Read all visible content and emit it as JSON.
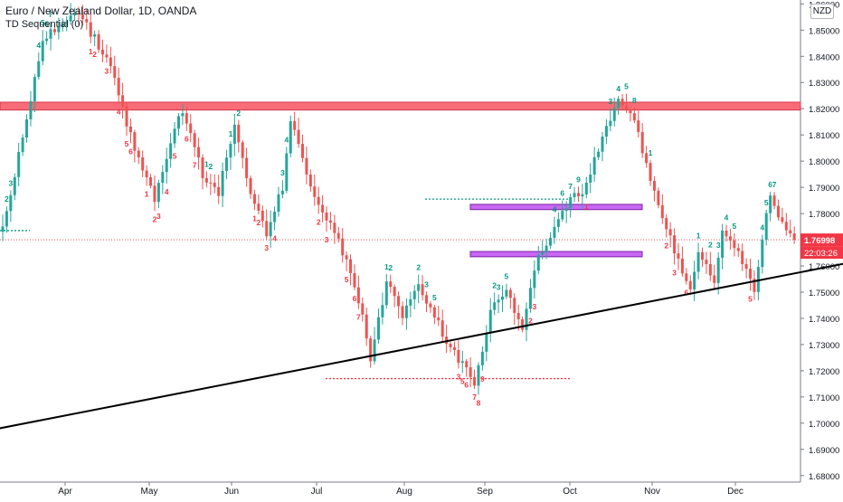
{
  "header": {
    "title": "Euro / New Zealand Dollar, 1D, OANDA",
    "indicator": "TD Sequential (0)"
  },
  "currency_badge": "NZD",
  "colors": {
    "bull": "#26a69a",
    "bear": "#ef5350",
    "count_up": "#089981",
    "count_down": "#f23645",
    "resistance_band": "#f7525f",
    "box_purple": "#c04ef2",
    "trendline": "#000000",
    "price_label": "#f23645"
  },
  "price_label": {
    "value": "1.76998",
    "countdown": "22:03:26"
  },
  "chart_data": {
    "type": "candlestick",
    "x_axis": {
      "ticks": [
        "Apr",
        "May",
        "Jun",
        "Jul",
        "Aug",
        "Sep",
        "Oct",
        "Nov",
        "Dec"
      ]
    },
    "y_axis": {
      "range": [
        1.6775,
        1.8615
      ],
      "ticks": [
        "1.68000",
        "1.69000",
        "1.70000",
        "1.71000",
        "1.72000",
        "1.73000",
        "1.74000",
        "1.75000",
        "1.76000",
        "1.77000",
        "1.78000",
        "1.79000",
        "1.80000",
        "1.81000",
        "1.82000",
        "1.83000",
        "1.84000",
        "1.85000",
        "1.86000"
      ]
    },
    "grid": false,
    "approx_close_path": [
      [
        0,
        1.775
      ],
      [
        6,
        1.815
      ],
      [
        10,
        1.846
      ],
      [
        18,
        1.858
      ],
      [
        26,
        1.84
      ],
      [
        30,
        1.82
      ],
      [
        34,
        1.8
      ],
      [
        38,
        1.786
      ],
      [
        42,
        1.808
      ],
      [
        45,
        1.82
      ],
      [
        50,
        1.795
      ],
      [
        54,
        1.788
      ],
      [
        58,
        1.815
      ],
      [
        62,
        1.789
      ],
      [
        66,
        1.772
      ],
      [
        70,
        1.79
      ],
      [
        72,
        1.815
      ],
      [
        78,
        1.787
      ],
      [
        82,
        1.775
      ],
      [
        86,
        1.762
      ],
      [
        90,
        1.74
      ],
      [
        92,
        1.722
      ],
      [
        96,
        1.755
      ],
      [
        100,
        1.742
      ],
      [
        104,
        1.752
      ],
      [
        108,
        1.742
      ],
      [
        112,
        1.728
      ],
      [
        116,
        1.721
      ],
      [
        118,
        1.716
      ],
      [
        122,
        1.742
      ],
      [
        126,
        1.752
      ],
      [
        130,
        1.736
      ],
      [
        134,
        1.764
      ],
      [
        138,
        1.775
      ],
      [
        142,
        1.785
      ],
      [
        146,
        1.79
      ],
      [
        150,
        1.809
      ],
      [
        154,
        1.822
      ],
      [
        158,
        1.815
      ],
      [
        160,
        1.805
      ],
      [
        164,
        1.782
      ],
      [
        168,
        1.766
      ],
      [
        172,
        1.75
      ],
      [
        174,
        1.767
      ],
      [
        178,
        1.755
      ],
      [
        180,
        1.775
      ],
      [
        184,
        1.764
      ],
      [
        188,
        1.752
      ],
      [
        190,
        1.77
      ],
      [
        192,
        1.788
      ],
      [
        194,
        1.78
      ],
      [
        196,
        1.775
      ],
      [
        198,
        1.77
      ]
    ],
    "current_price": 1.76998,
    "resistance_band": [
      1.8195,
      1.8225
    ],
    "boxes": [
      [
        1.7815,
        1.7835
      ],
      [
        1.7635,
        1.7655
      ]
    ],
    "dotted_levels": [
      {
        "value": 1.7735,
        "color": "green"
      },
      {
        "value": 1.7855,
        "color": "green"
      },
      {
        "value": 1.717,
        "color": "red"
      },
      {
        "value": 1.77,
        "color": "red"
      }
    ],
    "trendline": [
      [
        -16,
        1.6935
      ],
      [
        216,
        1.7625
      ]
    ],
    "td_counts": [
      {
        "bar": 1,
        "text": "2",
        "dir": "up",
        "side": "above"
      },
      {
        "bar": 2,
        "text": "3",
        "dir": "up",
        "side": "above"
      },
      {
        "bar": 9,
        "text": "4",
        "dir": "up",
        "side": "above"
      },
      {
        "bar": 10,
        "text": "5",
        "dir": "up",
        "side": "above"
      },
      {
        "bar": 11,
        "text": "6",
        "dir": "up",
        "side": "above"
      },
      {
        "bar": 12,
        "text": "7",
        "dir": "up",
        "side": "above"
      },
      {
        "bar": 22,
        "text": "1",
        "dir": "down",
        "side": "below"
      },
      {
        "bar": 23,
        "text": "2",
        "dir": "down",
        "side": "below"
      },
      {
        "bar": 26,
        "text": "3",
        "dir": "down",
        "side": "below"
      },
      {
        "bar": 29,
        "text": "4",
        "dir": "down",
        "side": "below"
      },
      {
        "bar": 31,
        "text": "5",
        "dir": "down",
        "side": "below"
      },
      {
        "bar": 32,
        "text": "6",
        "dir": "down",
        "side": "below"
      },
      {
        "bar": 36,
        "text": "1",
        "dir": "down",
        "side": "below"
      },
      {
        "bar": 38,
        "text": "2",
        "dir": "down",
        "side": "below"
      },
      {
        "bar": 39,
        "text": "3",
        "dir": "down",
        "side": "below"
      },
      {
        "bar": 41,
        "text": "4",
        "dir": "down",
        "side": "below"
      },
      {
        "bar": 43,
        "text": "5",
        "dir": "down",
        "side": "below"
      },
      {
        "bar": 46,
        "text": "6",
        "dir": "down",
        "side": "below"
      },
      {
        "bar": 48,
        "text": "7",
        "dir": "down",
        "side": "below"
      },
      {
        "bar": 51,
        "text": "1",
        "dir": "up",
        "side": "above"
      },
      {
        "bar": 52,
        "text": "2",
        "dir": "up",
        "side": "above"
      },
      {
        "bar": 57,
        "text": "1",
        "dir": "up",
        "side": "above"
      },
      {
        "bar": 59,
        "text": "2",
        "dir": "up",
        "side": "above"
      },
      {
        "bar": 63,
        "text": "1",
        "dir": "down",
        "side": "below"
      },
      {
        "bar": 64,
        "text": "2",
        "dir": "down",
        "side": "below"
      },
      {
        "bar": 66,
        "text": "3",
        "dir": "down",
        "side": "below"
      },
      {
        "bar": 68,
        "text": "4",
        "dir": "down",
        "side": "below"
      },
      {
        "bar": 70,
        "text": "3",
        "dir": "up",
        "side": "above"
      },
      {
        "bar": 71,
        "text": "4",
        "dir": "up",
        "side": "above"
      },
      {
        "bar": 79,
        "text": "2",
        "dir": "down",
        "side": "below"
      },
      {
        "bar": 81,
        "text": "3",
        "dir": "down",
        "side": "below"
      },
      {
        "bar": 86,
        "text": "5",
        "dir": "down",
        "side": "below"
      },
      {
        "bar": 88,
        "text": "6",
        "dir": "down",
        "side": "below"
      },
      {
        "bar": 89,
        "text": "7",
        "dir": "down",
        "side": "below"
      },
      {
        "bar": 96,
        "text": "1",
        "dir": "up",
        "side": "above"
      },
      {
        "bar": 97,
        "text": "2",
        "dir": "up",
        "side": "above"
      },
      {
        "bar": 104,
        "text": "2",
        "dir": "up",
        "side": "above"
      },
      {
        "bar": 106,
        "text": "3",
        "dir": "up",
        "side": "above"
      },
      {
        "bar": 108,
        "text": "5",
        "dir": "up",
        "side": "above"
      },
      {
        "bar": 114,
        "text": "3",
        "dir": "down",
        "side": "below"
      },
      {
        "bar": 115,
        "text": "5",
        "dir": "down",
        "side": "below"
      },
      {
        "bar": 116,
        "text": "6",
        "dir": "down",
        "side": "below"
      },
      {
        "bar": 118,
        "text": "7",
        "dir": "down",
        "side": "below"
      },
      {
        "bar": 119,
        "text": "8",
        "dir": "down",
        "side": "below"
      },
      {
        "bar": 120,
        "text": "9",
        "dir": "down",
        "side": "below"
      },
      {
        "bar": 123,
        "text": "2",
        "dir": "up",
        "side": "above"
      },
      {
        "bar": 124,
        "text": "3",
        "dir": "up",
        "side": "above"
      },
      {
        "bar": 126,
        "text": "5",
        "dir": "up",
        "side": "above"
      },
      {
        "bar": 132,
        "text": "2",
        "dir": "down",
        "side": "below"
      },
      {
        "bar": 133,
        "text": "3",
        "dir": "down",
        "side": "below"
      },
      {
        "bar": 138,
        "text": "4",
        "dir": "up",
        "side": "above"
      },
      {
        "bar": 140,
        "text": "6",
        "dir": "up",
        "side": "above"
      },
      {
        "bar": 142,
        "text": "7",
        "dir": "up",
        "side": "above"
      },
      {
        "bar": 144,
        "text": "9",
        "dir": "up",
        "side": "above"
      },
      {
        "bar": 146,
        "text": "1",
        "dir": "down",
        "side": "below"
      },
      {
        "bar": 152,
        "text": "3",
        "dir": "up",
        "side": "above"
      },
      {
        "bar": 154,
        "text": "4",
        "dir": "up",
        "side": "above"
      },
      {
        "bar": 156,
        "text": "5",
        "dir": "up",
        "side": "above"
      },
      {
        "bar": 158,
        "text": "8",
        "dir": "up",
        "side": "above"
      },
      {
        "bar": 162,
        "text": "1",
        "dir": "up",
        "side": "above"
      },
      {
        "bar": 166,
        "text": "2",
        "dir": "down",
        "side": "below"
      },
      {
        "bar": 168,
        "text": "3",
        "dir": "down",
        "side": "below"
      },
      {
        "bar": 171,
        "text": "6",
        "dir": "down",
        "side": "below"
      },
      {
        "bar": 174,
        "text": "1",
        "dir": "up",
        "side": "above"
      },
      {
        "bar": 177,
        "text": "2",
        "dir": "up",
        "side": "above"
      },
      {
        "bar": 179,
        "text": "3",
        "dir": "up",
        "side": "above"
      },
      {
        "bar": 181,
        "text": "4",
        "dir": "up",
        "side": "above"
      },
      {
        "bar": 183,
        "text": "5",
        "dir": "up",
        "side": "above"
      },
      {
        "bar": 187,
        "text": "5",
        "dir": "down",
        "side": "below"
      },
      {
        "bar": 190,
        "text": "4",
        "dir": "up",
        "side": "above"
      },
      {
        "bar": 191,
        "text": "5",
        "dir": "up",
        "side": "above"
      },
      {
        "bar": 192,
        "text": "6",
        "dir": "up",
        "side": "above"
      },
      {
        "bar": 193,
        "text": "7",
        "dir": "up",
        "side": "above"
      }
    ]
  }
}
